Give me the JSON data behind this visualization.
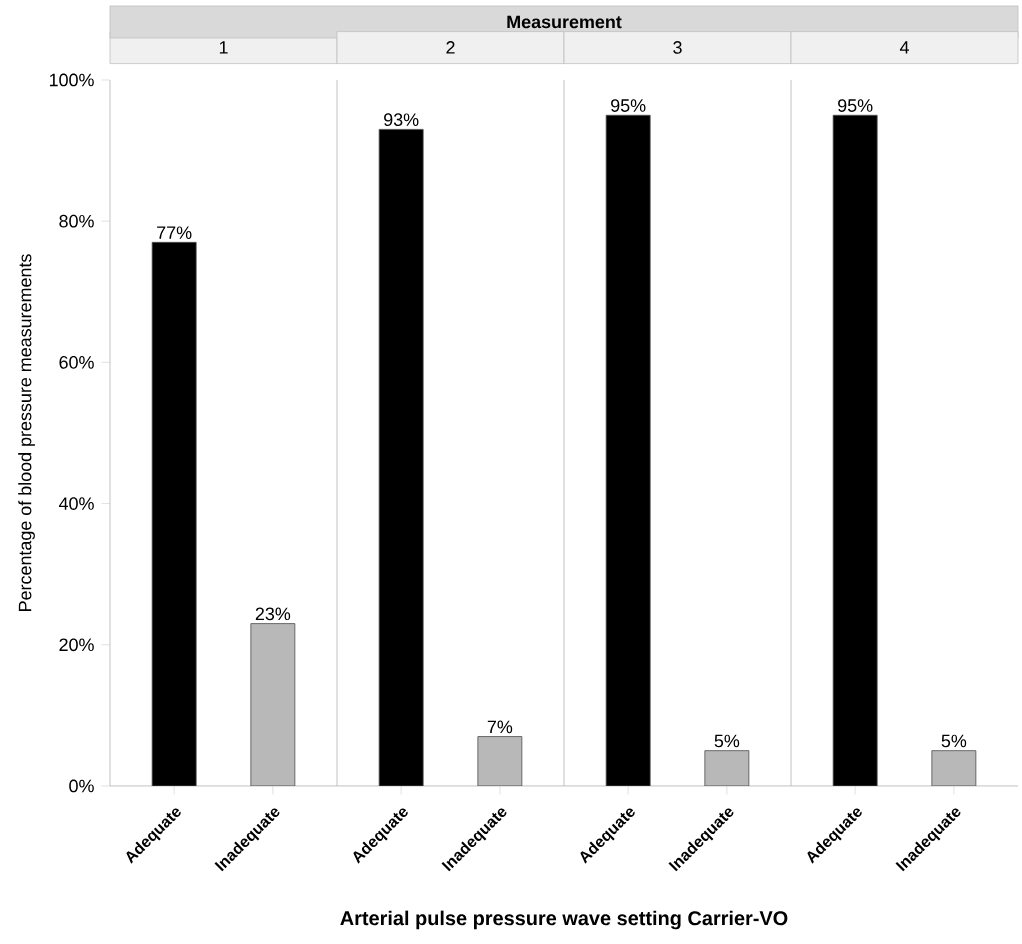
{
  "chart_data": [
    {
      "type": "bar",
      "title": "1",
      "annotations": [
        "Measurement"
      ],
      "xlabel": "Arterial pulse pressure wave setting Carrier-VO",
      "ylabel": "Percentage of blood pressure measurements",
      "categories": [
        "Adequate",
        "Inadequate"
      ],
      "values": [
        77,
        23
      ],
      "value_labels": [
        "77%",
        "23%"
      ],
      "colors": [
        "#000000",
        "#b8b8b8"
      ],
      "ylim": [
        0,
        100
      ],
      "yticks": [
        {
          "value": 0,
          "label": "0%"
        },
        {
          "value": 20,
          "label": "20%"
        },
        {
          "value": 40,
          "label": "40%"
        },
        {
          "value": 60,
          "label": "60%"
        },
        {
          "value": 80,
          "label": "80%"
        },
        {
          "value": 100,
          "label": "100%"
        }
      ]
    },
    {
      "type": "bar",
      "title": "2",
      "categories": [
        "Adequate",
        "Inadequate"
      ],
      "values": [
        93,
        7
      ],
      "value_labels": [
        "93%",
        "7%"
      ],
      "colors": [
        "#000000",
        "#b8b8b8"
      ],
      "ylim": [
        0,
        100
      ],
      "tick_labels": "x"
    },
    {
      "type": "bar",
      "title": "3",
      "categories": [
        "Adequate",
        "Inadequate"
      ],
      "values": [
        95,
        5
      ],
      "value_labels": [
        "95%",
        "5%"
      ],
      "colors": [
        "#000000",
        "#b8b8b8"
      ],
      "ylim": [
        0,
        100
      ],
      "tick_labels": "x"
    },
    {
      "type": "bar",
      "title": "4",
      "categories": [
        "Adequate",
        "Inadequate"
      ],
      "values": [
        95,
        5
      ],
      "value_labels": [
        "95%",
        "5%"
      ],
      "colors": [
        "#000000",
        "#b8b8b8"
      ],
      "ylim": [
        0,
        100
      ],
      "tick_labels": "x"
    }
  ]
}
